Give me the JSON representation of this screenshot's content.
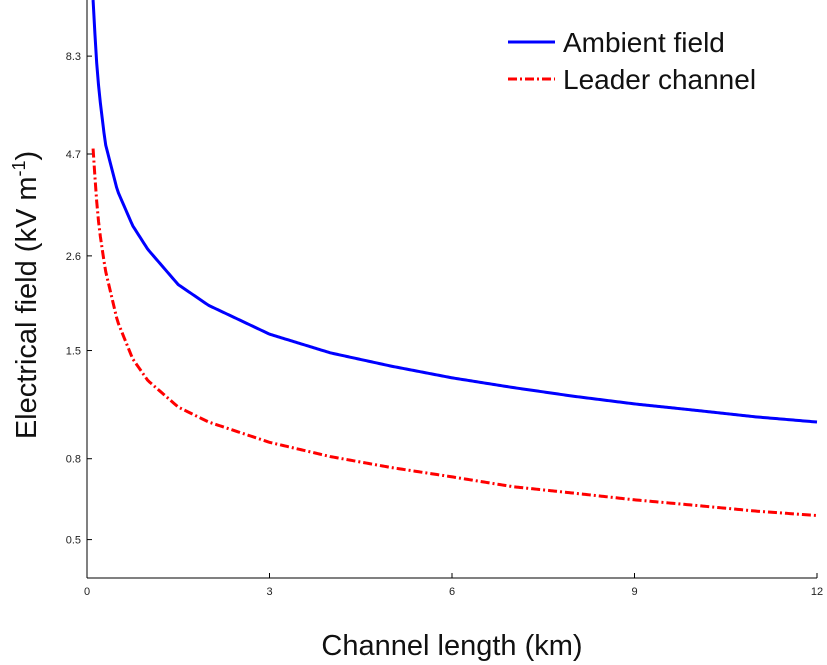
{
  "chart_data": {
    "type": "line",
    "xlabel": "Channel length (km)",
    "ylabel_main": "Electrical field (kV m",
    "ylabel_sup": "-1",
    "ylabel_close": ")",
    "xlim": [
      0,
      12
    ],
    "ylim": [
      0.4,
      11.5
    ],
    "yscale": "log",
    "xticks": [
      0,
      3,
      6,
      9,
      12
    ],
    "xtick_labels": [
      "0",
      "3",
      "6",
      "9",
      "12"
    ],
    "yticks": [
      0.5,
      0.8,
      1.5,
      2.6,
      4.7,
      8.3
    ],
    "ytick_labels": [
      "0.5",
      "0.8",
      "1.5",
      "2.6",
      "4.7",
      "8.3"
    ],
    "grid": false,
    "legend_position": "top-right",
    "series": [
      {
        "name": "Ambient field",
        "color": "#0000ff",
        "style": "solid",
        "x": [
          0.1,
          0.15,
          0.2,
          0.3,
          0.5,
          0.75,
          1,
          1.5,
          2,
          3,
          4,
          5,
          6,
          7,
          8,
          9,
          10,
          11,
          12
        ],
        "y": [
          11.5,
          8.3,
          6.7,
          5.0,
          3.8,
          3.1,
          2.7,
          2.2,
          1.95,
          1.65,
          1.48,
          1.37,
          1.28,
          1.21,
          1.15,
          1.1,
          1.06,
          1.02,
          0.99
        ]
      },
      {
        "name": "Leader channel",
        "color": "#ff0000",
        "style": "dashdot",
        "x": [
          0.1,
          0.15,
          0.2,
          0.3,
          0.5,
          0.75,
          1,
          1.5,
          2,
          3,
          4,
          5,
          6,
          7,
          8,
          9,
          10,
          11,
          12
        ],
        "y": [
          4.85,
          3.7,
          3.05,
          2.4,
          1.78,
          1.43,
          1.26,
          1.08,
          0.99,
          0.88,
          0.81,
          0.76,
          0.72,
          0.68,
          0.655,
          0.63,
          0.61,
          0.59,
          0.575
        ]
      }
    ]
  }
}
